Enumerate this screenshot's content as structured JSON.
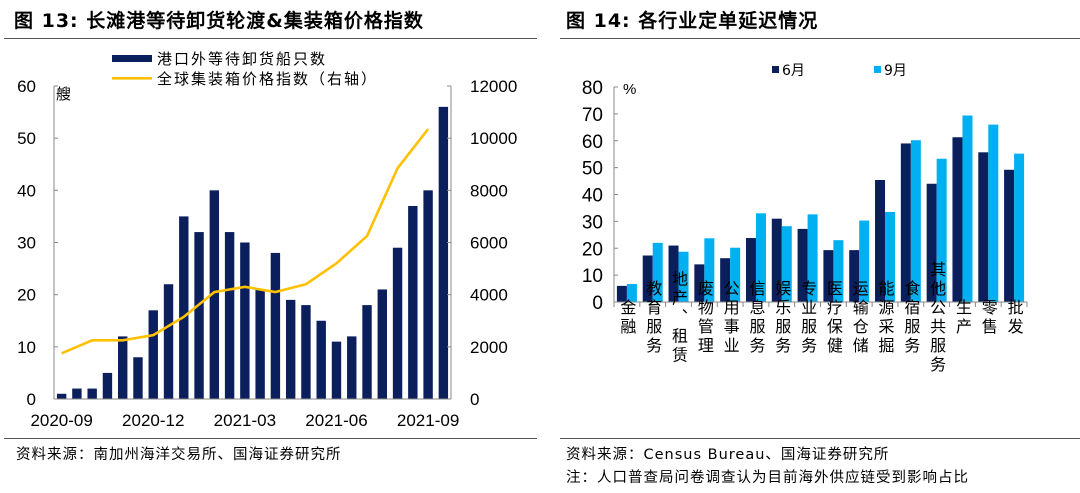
{
  "left": {
    "title": "图 13:  长滩港等待卸货轮渡&集装箱价格指数",
    "source": "资料来源：南加州海洋交易所、国海证券研究所"
  },
  "right": {
    "title": "图 14:  各行业定单延迟情况",
    "source": "资料来源：Census Bureau、国海证券研究所",
    "note": "注：人口普查局问卷调查认为目前海外供应链受到影响占比"
  },
  "chart_data": [
    {
      "type": "bar+line",
      "unit_label": "艘",
      "x_tick_labels": [
        "2020-09",
        "2020-12",
        "2021-03",
        "2021-06",
        "2021-09"
      ],
      "ylim": [
        0,
        60
      ],
      "y_ticks": [
        0,
        10,
        20,
        30,
        40,
        50,
        60
      ],
      "y2lim": [
        0,
        12000
      ],
      "y2_ticks": [
        0,
        2000,
        4000,
        6000,
        8000,
        10000,
        12000
      ],
      "series": [
        {
          "name": "港口外等待卸货船只数",
          "type": "bar",
          "axis": "left",
          "color": "#0a1f5c",
          "values": [
            1,
            2,
            2,
            5,
            12,
            8,
            17,
            22,
            35,
            32,
            40,
            32,
            30,
            21,
            28,
            19,
            18,
            15,
            11,
            12,
            18,
            21,
            29,
            37,
            40,
            56
          ]
        },
        {
          "name": "全球集装箱价格指数（右轴）",
          "type": "line",
          "axis": "right",
          "color": "#ffc000",
          "values": [
            1750,
            null,
            2250,
            null,
            2250,
            null,
            2450,
            null,
            3150,
            null,
            4100,
            null,
            4300,
            null,
            4100,
            null,
            4400,
            null,
            5200,
            null,
            6250,
            null,
            8850,
            null,
            10350,
            null
          ]
        }
      ],
      "legend": "top",
      "grid": false
    },
    {
      "type": "bar",
      "unit_label": "%",
      "categories": [
        "金融",
        "教育服务",
        "地产、租赁",
        "废物管理",
        "公用事业",
        "信息服务",
        "娱乐服务",
        "专业服务",
        "医疗保健",
        "运输仓储",
        "能源采掘",
        "食宿服务",
        "其他公共服务",
        "生产",
        "零售",
        "批发"
      ],
      "ylim": [
        0,
        80
      ],
      "y_ticks": [
        0,
        10,
        20,
        30,
        40,
        50,
        60,
        70,
        80
      ],
      "series": [
        {
          "name": "6月",
          "color": "#0a1f5c",
          "values": [
            6,
            17.3,
            21,
            14,
            16.3,
            23.8,
            31,
            27.2,
            19.3,
            19.3,
            45.4,
            59,
            44,
            61.3,
            55.7,
            49.2
          ]
        },
        {
          "name": "9月",
          "color": "#00b0f0",
          "values": [
            6.7,
            22,
            18.7,
            23.7,
            20.2,
            33,
            28.2,
            32.6,
            23,
            30.3,
            33.5,
            60.2,
            53.3,
            69.4,
            66,
            55.2
          ]
        }
      ],
      "legend": "top",
      "grid": false
    }
  ]
}
